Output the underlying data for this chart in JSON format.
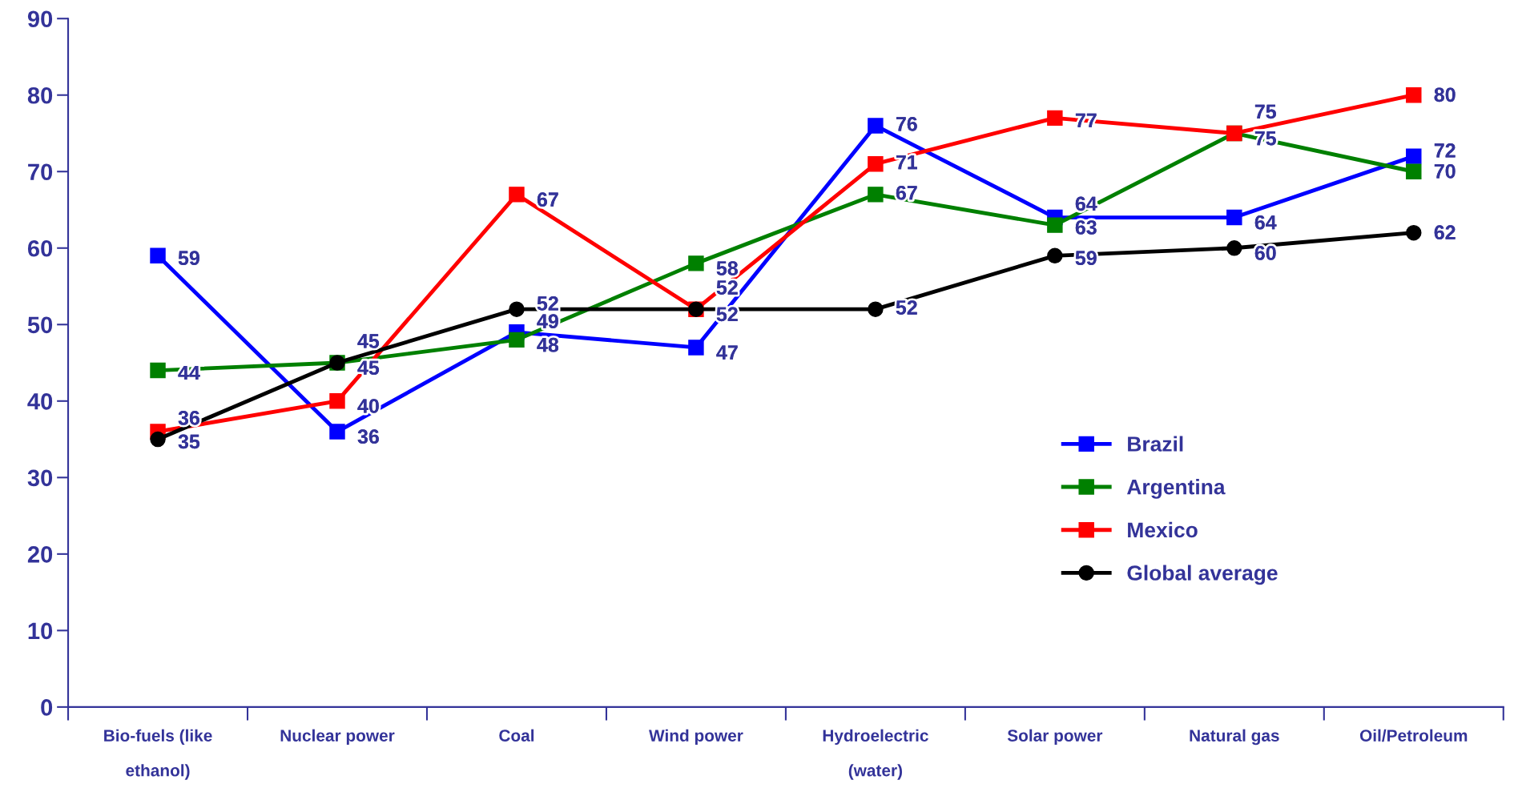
{
  "chart_data": {
    "type": "line",
    "categories": [
      "Bio-fuels (like\nethanol)",
      "Nuclear power",
      "Coal",
      "Wind power",
      "Hydroelectric\n(water)",
      "Solar power",
      "Natural gas",
      "Oil/Petroleum"
    ],
    "series": [
      {
        "name": "Brazil",
        "color": "#0000ff",
        "marker": "square",
        "values": [
          59,
          36,
          49,
          47,
          76,
          64,
          64,
          72
        ]
      },
      {
        "name": "Argentina",
        "color": "#008000",
        "marker": "square",
        "values": [
          44,
          45,
          48,
          58,
          67,
          63,
          75,
          70
        ]
      },
      {
        "name": "Mexico",
        "color": "#ff0000",
        "marker": "square",
        "values": [
          36,
          40,
          67,
          52,
          71,
          77,
          75,
          80
        ]
      },
      {
        "name": "Global average",
        "color": "#000000",
        "marker": "circle",
        "values": [
          35,
          45,
          52,
          52,
          52,
          59,
          60,
          62
        ]
      }
    ],
    "ylim": [
      0,
      90
    ],
    "yticks": [
      0,
      10,
      20,
      30,
      40,
      50,
      60,
      70,
      80,
      90
    ],
    "data_labels": true,
    "grid": false,
    "legend": "right",
    "line_style": "solid"
  }
}
